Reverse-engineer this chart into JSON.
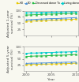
{
  "years": [
    2000,
    2001,
    2002,
    2003,
    2004,
    2005,
    2006,
    2007,
    2008,
    2009,
    2010
  ],
  "panel1": {
    "ylabel": "Adjusted 1-year\nsurvival (%)",
    "ylim": [
      0,
      100
    ],
    "yticks": [
      25,
      50,
      75,
      100
    ],
    "series": {
      "HD": [
        57,
        58,
        59,
        60,
        61,
        62,
        62,
        63,
        64,
        65,
        66
      ],
      "PD": [
        63,
        64,
        65,
        66,
        67,
        68,
        68,
        69,
        70,
        71,
        72
      ],
      "Deceased Tx": [
        82,
        83,
        84,
        85,
        86,
        86,
        87,
        88,
        88,
        89,
        90
      ],
      "Living Tx": [
        91,
        92,
        92,
        93,
        93,
        94,
        94,
        95,
        95,
        96,
        96
      ]
    },
    "colors": {
      "HD": "#e8c800",
      "PD": "#4a90d9",
      "Deceased Tx": "#22bb44",
      "Living Tx": "#00cccc"
    },
    "markers": {
      "HD": "s",
      "PD": "^",
      "Deceased Tx": "s",
      "Living Tx": "D"
    }
  },
  "panel2": {
    "ylabel": "Adjusted 5-year\nsurvival (%)",
    "ylim": [
      0,
      100
    ],
    "yticks": [
      25,
      50,
      75,
      100
    ],
    "series": {
      "HD": [
        27,
        28,
        28,
        29,
        29,
        30,
        30,
        31,
        31,
        32,
        33
      ],
      "PD": [
        32,
        33,
        33,
        34,
        34,
        35,
        36,
        36,
        37,
        37,
        38
      ],
      "Deceased Tx": [
        60,
        61,
        62,
        62,
        63,
        64,
        65,
        65,
        66,
        67,
        68
      ],
      "Living Tx": [
        73,
        74,
        74,
        75,
        76,
        76,
        77,
        78,
        78,
        79,
        80
      ]
    },
    "colors": {
      "HD": "#e8c800",
      "PD": "#4a90d9",
      "Deceased Tx": "#22bb44",
      "Living Tx": "#00cccc"
    },
    "markers": {
      "HD": "s",
      "PD": "^",
      "Deceased Tx": "s",
      "Living Tx": "D"
    }
  },
  "legend_labels": [
    "HD",
    "PD",
    "Deceased donor Tx",
    "Living donor Tx"
  ],
  "legend_colors": [
    "#e8c800",
    "#4a90d9",
    "#22bb44",
    "#00cccc"
  ],
  "legend_markers": [
    "s",
    "^",
    "s",
    "D"
  ],
  "xlabel": "Year",
  "xticks": [
    2000,
    2005,
    2010
  ],
  "background_color": "#f8f8f0"
}
